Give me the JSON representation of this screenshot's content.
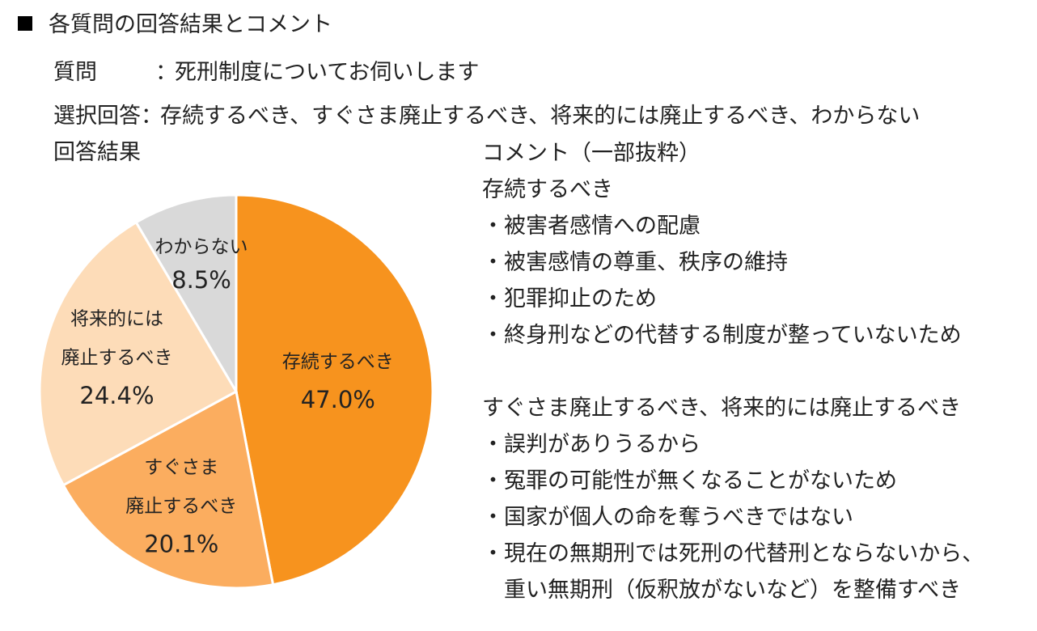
{
  "heading": "各質問の回答結果とコメント",
  "question": {
    "label": "質問",
    "colon": "：",
    "text": "死刑制度についてお伺いします"
  },
  "choices": {
    "label": "選択回答",
    "colon": "：",
    "text": "存続するべき、すぐさま廃止するべき、将来的には廃止するべき、わからない"
  },
  "results_label": "回答結果",
  "comments": {
    "title": "コメント（一部抜粋）",
    "group1": {
      "heading": "存続するべき",
      "items": [
        "・被害者感情への配慮",
        "・被害感情の尊重、秩序の維持",
        "・犯罪抑止のため",
        "・終身刑などの代替する制度が整っていないため"
      ]
    },
    "group2": {
      "heading": "すぐさま廃止するべき、将来的には廃止するべき",
      "items": [
        "・誤判がありうるから",
        "・冤罪の可能性が無くなることがないため",
        "・国家が個人の命を奪うべきではない",
        "・現在の無期刑では死刑の代替刑とならないから、"
      ],
      "continuation": "重い無期刑（仮釈放がないなど）を整備すべき"
    }
  },
  "chart_data": {
    "type": "pie",
    "start": "12 o'clock, clockwise",
    "slices": [
      {
        "label_lines": [
          "存続するべき"
        ],
        "value": 47.0,
        "value_text": "47.0%",
        "color": "#F7931E"
      },
      {
        "label_lines": [
          "すぐさま",
          "廃止するべき"
        ],
        "value": 20.1,
        "value_text": "20.1%",
        "color": "#FBAD5F"
      },
      {
        "label_lines": [
          "将来的には",
          "廃止するべき"
        ],
        "value": 24.4,
        "value_text": "24.4%",
        "color": "#FDDCB8"
      },
      {
        "label_lines": [
          "わからない"
        ],
        "value": 8.5,
        "value_text": "8.5%",
        "color": "#D9D9D9"
      }
    ]
  }
}
